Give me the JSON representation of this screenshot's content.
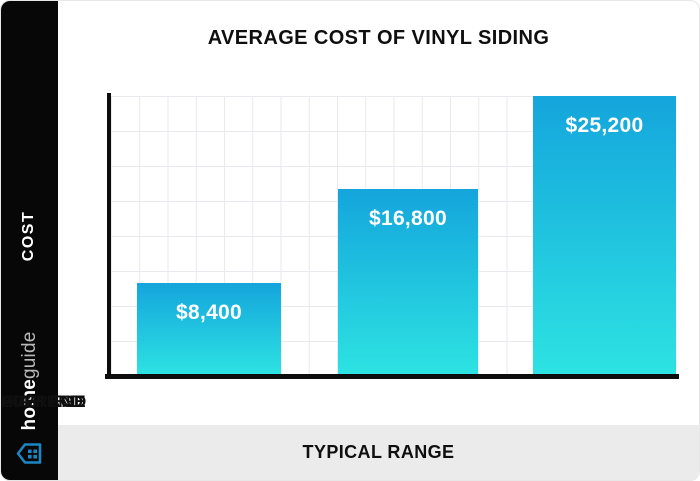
{
  "brand": {
    "name_bold": "home",
    "name_light": "guide",
    "logo_color": "#1a86c2"
  },
  "sidebar": {
    "axis_label": "COST"
  },
  "footer": {
    "label": "TYPICAL RANGE"
  },
  "colors": {
    "bar_gradient_top": "#14a5dc",
    "bar_gradient_bottom": "#2de3e2",
    "sidebar_bg": "#070707",
    "footer_bg": "#ebebeb",
    "grid_line": "#e9e9ef"
  },
  "chart_data": {
    "type": "bar",
    "title": "AVERAGE COST OF VINYL SIDING",
    "categories": [
      "LOW END",
      "AVERAGE",
      "HIGH END"
    ],
    "values": [
      8400,
      16800,
      25200
    ],
    "value_labels": [
      "$8,400",
      "$16,800",
      "$25,200"
    ],
    "xlabel": "TYPICAL RANGE",
    "ylabel": "COST",
    "ylim": [
      0,
      25200
    ],
    "grid": true,
    "legend": false,
    "bar_color_gradient": [
      "#14a5dc",
      "#2de3e2"
    ]
  }
}
